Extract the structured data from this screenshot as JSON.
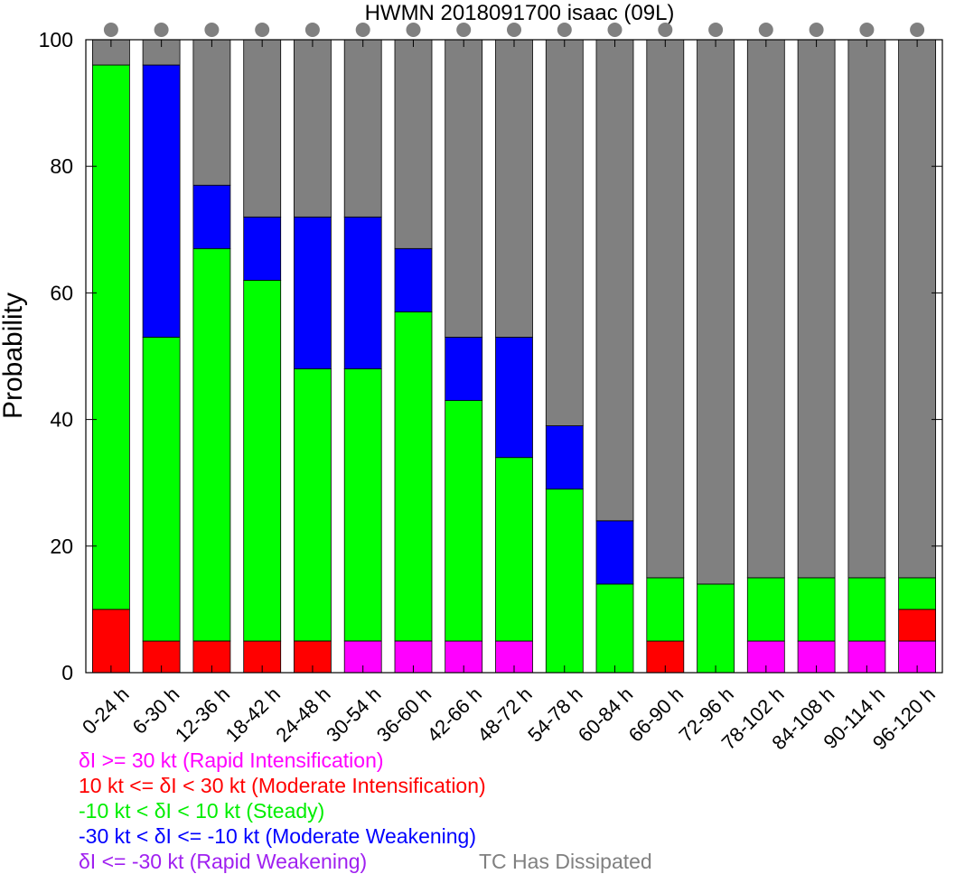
{
  "chart_data": {
    "type": "bar",
    "stacked": true,
    "title": "HWMN 2018091700 isaac (09L)",
    "xlabel": "",
    "ylabel": "Probability",
    "ylim": [
      0,
      100
    ],
    "yticks": [
      0,
      20,
      40,
      60,
      80,
      100
    ],
    "grid": false,
    "categories": [
      "0-24 h",
      "6-30 h",
      "12-36 h",
      "18-42 h",
      "24-48 h",
      "30-54 h",
      "36-60 h",
      "42-66 h",
      "48-72 h",
      "54-78 h",
      "60-84 h",
      "66-90 h",
      "72-96 h",
      "78-102 h",
      "84-108 h",
      "90-114 h",
      "96-120 h"
    ],
    "series": [
      {
        "name": "δI >= 30 kt (Rapid Intensification)",
        "color": "#ff00ff",
        "values": [
          0,
          0,
          0,
          0,
          0,
          5,
          5,
          5,
          5,
          0,
          0,
          0,
          0,
          5,
          5,
          5,
          5
        ]
      },
      {
        "name": "10 kt <= δI < 30 kt (Moderate Intensification)",
        "color": "#ff0000",
        "values": [
          10,
          5,
          5,
          5,
          5,
          0,
          0,
          0,
          0,
          0,
          0,
          5,
          0,
          0,
          0,
          0,
          5
        ]
      },
      {
        "name": "-10 kt < δI < 10 kt (Steady)",
        "color": "#00ff00",
        "values": [
          86,
          48,
          62,
          57,
          43,
          43,
          52,
          38,
          29,
          29,
          14,
          10,
          14,
          10,
          10,
          10,
          5
        ]
      },
      {
        "name": "-30 kt < δI <= -10 kt (Moderate Weakening)",
        "color": "#0000ff",
        "values": [
          0,
          43,
          10,
          10,
          24,
          24,
          10,
          10,
          19,
          10,
          10,
          0,
          0,
          0,
          0,
          0,
          0
        ]
      },
      {
        "name": "δI <= -30 kt (Rapid Weakening)",
        "color": "#a020f0",
        "values": [
          0,
          0,
          0,
          0,
          0,
          0,
          0,
          0,
          0,
          0,
          0,
          0,
          0,
          0,
          0,
          0,
          0
        ]
      },
      {
        "name": "TC Has Dissipated",
        "color": "#808080",
        "values": [
          4,
          4,
          23,
          28,
          28,
          28,
          33,
          47,
          47,
          61,
          76,
          85,
          86,
          85,
          85,
          85,
          85
        ]
      }
    ],
    "legend_placement": "bottom-left",
    "marker_color": "#808080",
    "axis_color": "#000000"
  }
}
